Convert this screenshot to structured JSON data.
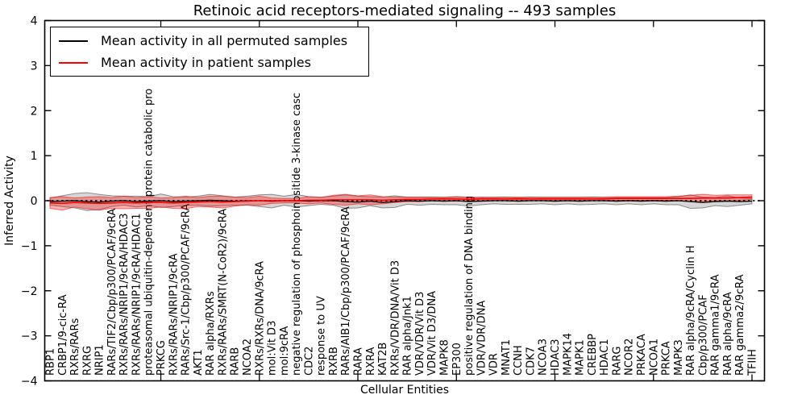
{
  "figure": {
    "title": "Retinoic acid receptors-mediated signaling -- 493 samples",
    "xlabel": "Cellular Entities",
    "ylabel": "Inferred Activity",
    "legend": [
      {
        "label": "Mean activity in all permuted samples",
        "color": "#000000"
      },
      {
        "label": "Mean activity in patient samples",
        "color": "#ff0000"
      }
    ]
  },
  "chart_data": {
    "type": "line",
    "title": "Retinoic acid receptors-mediated signaling -- 493 samples",
    "xlabel": "Cellular Entities",
    "ylabel": "Inferred Activity",
    "ylim": [
      -4,
      4
    ],
    "yticks": [
      -4,
      -3,
      -2,
      -1,
      0,
      1,
      2,
      3,
      4
    ],
    "grid": false,
    "zero_line": true,
    "legend_position": "upper left",
    "categories": [
      "RBP1",
      "CRBP1/9-cic-RA",
      "RXRs/RARs",
      "RXRG",
      "NRIP1",
      "RARs/TIF2/Cbp/p300/PCAF/9cRA",
      "RXRs/RARs/NRIP1/9cRA/HDAC3",
      "RXRs/RARs/NRIP1/9cRA/HDAC1",
      "proteasomal ubiquitin-dependent protein catabolic pro",
      "PRKCG",
      "RXRs/RARs/NRIP1/9cRA",
      "RARs/Src-1/Cbp/p300/PCAF/9cRA",
      "AKT1",
      "RAR alpha/RXRs",
      "RXRs/RARs/SMRT(N-CoR2)/9cRA",
      "RARB",
      "NCOA2",
      "RXRs/RXRs/DNA/9cRA",
      "mol:Vit D3",
      "mol:9cRA",
      "negative regulation of phosphoinositide 3-kinase casc",
      "CDC2",
      "response to UV",
      "RXRB",
      "RARs/AIB1/Cbp/p300/PCAF/9cRA",
      "RARA",
      "RXRA",
      "KAT2B",
      "RXRs/VDR/DNA/Vit D3",
      "RAR alpha/Jnk1",
      "VDR/VDR/Vit D3",
      "VDR/Vit D3/DNA",
      "MAPK8",
      "EP300",
      "positive regulation of DNA binding",
      "VDR/VDR/DNA",
      "VDR",
      "MNAT1",
      "CCNH",
      "CDK7",
      "NCOA3",
      "HDAC3",
      "MAPK14",
      "MAPK1",
      "CREBBP",
      "HDAC1",
      "RARG",
      "NCOR2",
      "PRKACA",
      "NCOA1",
      "PRKCA",
      "MAPK3",
      "RAR alpha/9cRA/Cyclin H",
      "Cbp/p300/PCAF",
      "RAR gamma1/9cRA",
      "RAR alpha/9cRA",
      "RAR gamma2/9cRA",
      "TFIIH"
    ],
    "series": [
      {
        "name": "Mean activity in all permuted samples",
        "color": "#000000",
        "band_color": "#000000",
        "band_opacity": 0.16,
        "values": [
          -0.02,
          -0.01,
          0.0,
          -0.02,
          -0.03,
          -0.01,
          0.0,
          -0.02,
          -0.01,
          0.0,
          -0.02,
          -0.01,
          0.0,
          0.01,
          0.0,
          -0.01,
          0.0,
          0.0,
          -0.01,
          0.0,
          0.0,
          -0.01,
          0.0,
          0.0,
          -0.02,
          -0.03,
          -0.01,
          -0.04,
          -0.02,
          0.0,
          -0.01,
          0.0,
          -0.01,
          0.0,
          -0.02,
          -0.01,
          0.0,
          0.0,
          -0.01,
          0.0,
          0.0,
          -0.01,
          0.0,
          -0.01,
          0.0,
          0.0,
          -0.01,
          0.0,
          -0.01,
          0.0,
          -0.01,
          0.0,
          -0.02,
          -0.04,
          -0.02,
          -0.01,
          -0.02,
          -0.01
        ],
        "std": [
          0.08,
          0.12,
          0.16,
          0.2,
          0.17,
          0.12,
          0.1,
          0.12,
          0.1,
          0.15,
          0.11,
          0.09,
          0.1,
          0.13,
          0.11,
          0.09,
          0.1,
          0.13,
          0.15,
          0.1,
          0.14,
          0.1,
          0.08,
          0.1,
          0.15,
          0.13,
          0.1,
          0.12,
          0.13,
          0.08,
          0.09,
          0.08,
          0.08,
          0.09,
          0.1,
          0.08,
          0.07,
          0.08,
          0.07,
          0.08,
          0.07,
          0.08,
          0.07,
          0.08,
          0.08,
          0.07,
          0.08,
          0.07,
          0.08,
          0.07,
          0.08,
          0.09,
          0.15,
          0.12,
          0.09,
          0.12,
          0.08,
          0.06
        ]
      },
      {
        "name": "Mean activity in patient samples",
        "color": "#ff0000",
        "band_color": "#ff0000",
        "band_opacity": 0.3,
        "values": [
          -0.05,
          -0.06,
          -0.04,
          -0.05,
          -0.06,
          -0.05,
          -0.04,
          -0.05,
          -0.04,
          -0.04,
          -0.05,
          -0.04,
          -0.03,
          -0.02,
          -0.03,
          -0.02,
          -0.01,
          0.0,
          0.0,
          0.0,
          0.0,
          0.01,
          0.01,
          0.02,
          0.02,
          0.02,
          0.02,
          0.01,
          0.02,
          0.03,
          0.03,
          0.04,
          0.04,
          0.04,
          0.03,
          0.04,
          0.04,
          0.04,
          0.04,
          0.04,
          0.04,
          0.04,
          0.04,
          0.04,
          0.04,
          0.04,
          0.05,
          0.05,
          0.05,
          0.05,
          0.05,
          0.05,
          0.05,
          0.06,
          0.06,
          0.06,
          0.07,
          0.08
        ],
        "std": [
          0.12,
          0.15,
          0.1,
          0.13,
          0.15,
          0.12,
          0.14,
          0.12,
          0.13,
          0.1,
          0.12,
          0.14,
          0.1,
          0.12,
          0.13,
          0.1,
          0.08,
          0.1,
          0.06,
          0.05,
          0.05,
          0.08,
          0.06,
          0.1,
          0.12,
          0.09,
          0.11,
          0.08,
          0.06,
          0.05,
          0.05,
          0.04,
          0.04,
          0.05,
          0.04,
          0.04,
          0.04,
          0.04,
          0.04,
          0.04,
          0.04,
          0.04,
          0.04,
          0.04,
          0.04,
          0.04,
          0.04,
          0.04,
          0.04,
          0.04,
          0.04,
          0.05,
          0.07,
          0.08,
          0.06,
          0.07,
          0.06,
          0.05
        ]
      }
    ]
  }
}
